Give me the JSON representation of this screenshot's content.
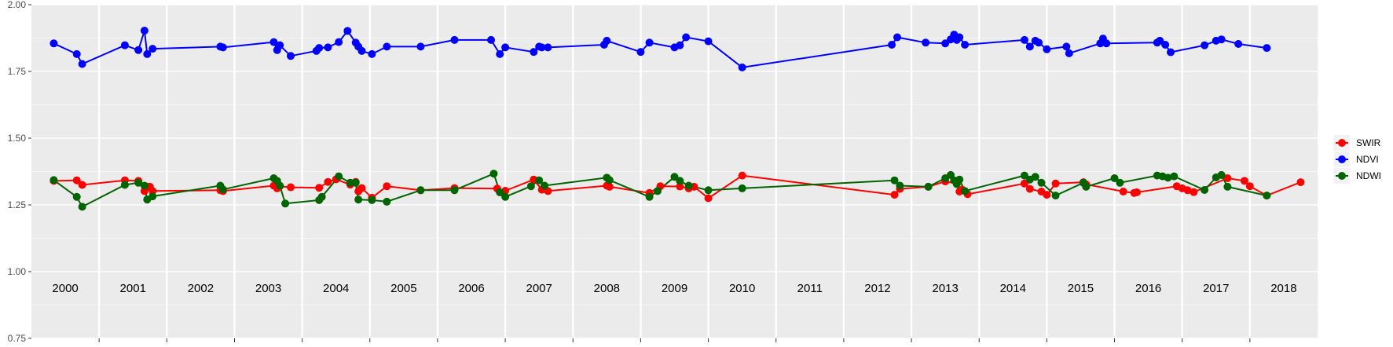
{
  "chart_data": {
    "type": "line",
    "title": "",
    "xlabel": "",
    "ylabel": "",
    "xlim": [
      2000.0,
      2019.0
    ],
    "ylim": [
      0.75,
      2.0
    ],
    "y_ticks": [
      "0.75",
      "1.00",
      "1.25",
      "1.50",
      "1.75",
      "2.00"
    ],
    "year_labels": [
      "2000",
      "2001",
      "2002",
      "2003",
      "2004",
      "2005",
      "2006",
      "2007",
      "2008",
      "2009",
      "2010",
      "2011",
      "2012",
      "2013",
      "2014",
      "2015",
      "2016",
      "2017",
      "2018"
    ],
    "grid": true,
    "legend_position": "right",
    "series": [
      {
        "name": "SWIR",
        "color": "#ff0000",
        "x": [
          2000.33,
          2000.67,
          2000.75,
          2001.38,
          2001.58,
          2001.67,
          2001.71,
          2001.75,
          2001.79,
          2002.79,
          2002.83,
          2003.58,
          2003.63,
          2003.67,
          2003.83,
          2004.25,
          2004.38,
          2004.5,
          2004.71,
          2004.79,
          2004.83,
          2004.88,
          2005.03,
          2005.25,
          2005.75,
          2006.25,
          2006.88,
          2007.0,
          2007.42,
          2007.54,
          2007.63,
          2008.5,
          2008.54,
          2009.13,
          2009.29,
          2009.58,
          2009.71,
          2009.79,
          2010.0,
          2010.5,
          2012.75,
          2012.83,
          2013.25,
          2013.5,
          2013.67,
          2013.71,
          2013.75,
          2013.83,
          2014.67,
          2014.75,
          2014.92,
          2015.0,
          2015.13,
          2015.54,
          2015.58,
          2016.13,
          2016.29,
          2016.33,
          2016.92,
          2017.0,
          2017.08,
          2017.17,
          2017.67,
          2017.92,
          2018.0,
          2018.25,
          2018.75
        ],
        "values": [
          1.34,
          1.342,
          1.325,
          1.342,
          1.34,
          1.302,
          1.318,
          1.318,
          1.302,
          1.305,
          1.302,
          1.322,
          1.312,
          1.32,
          1.316,
          1.314,
          1.336,
          1.346,
          1.326,
          1.336,
          1.301,
          1.313,
          1.277,
          1.32,
          1.305,
          1.313,
          1.311,
          1.303,
          1.345,
          1.307,
          1.302,
          1.322,
          1.318,
          1.295,
          1.32,
          1.319,
          1.312,
          1.318,
          1.275,
          1.36,
          1.288,
          1.31,
          1.318,
          1.338,
          1.33,
          1.3,
          1.307,
          1.29,
          1.33,
          1.31,
          1.3,
          1.288,
          1.33,
          1.335,
          1.327,
          1.3,
          1.295,
          1.297,
          1.32,
          1.312,
          1.305,
          1.298,
          1.35,
          1.34,
          1.32,
          1.285,
          1.335
        ]
      },
      {
        "name": "NDVI",
        "color": "#0000ff",
        "x": [
          2000.33,
          2000.67,
          2000.75,
          2001.38,
          2001.58,
          2001.67,
          2001.71,
          2001.79,
          2002.79,
          2002.83,
          2003.58,
          2003.63,
          2003.67,
          2003.83,
          2004.21,
          2004.25,
          2004.38,
          2004.54,
          2004.67,
          2004.79,
          2004.83,
          2004.88,
          2005.03,
          2005.25,
          2005.75,
          2006.25,
          2006.79,
          2006.92,
          2007.0,
          2007.42,
          2007.5,
          2007.54,
          2007.63,
          2008.46,
          2008.5,
          2009.0,
          2009.13,
          2009.5,
          2009.58,
          2009.67,
          2010.0,
          2010.5,
          2012.71,
          2012.79,
          2013.21,
          2013.5,
          2013.58,
          2013.63,
          2013.67,
          2013.71,
          2013.79,
          2014.67,
          2014.75,
          2014.83,
          2014.88,
          2015.0,
          2015.29,
          2015.33,
          2015.79,
          2015.83,
          2015.88,
          2016.63,
          2016.67,
          2016.75,
          2016.83,
          2017.33,
          2017.5,
          2017.58,
          2017.83,
          2018.25
        ],
        "values": [
          1.855,
          1.815,
          1.778,
          1.848,
          1.83,
          1.903,
          1.815,
          1.835,
          1.843,
          1.84,
          1.86,
          1.83,
          1.848,
          1.808,
          1.827,
          1.838,
          1.84,
          1.86,
          1.902,
          1.858,
          1.843,
          1.827,
          1.815,
          1.843,
          1.843,
          1.868,
          1.868,
          1.815,
          1.84,
          1.823,
          1.843,
          1.84,
          1.84,
          1.85,
          1.865,
          1.823,
          1.858,
          1.84,
          1.848,
          1.878,
          1.863,
          1.765,
          1.85,
          1.878,
          1.858,
          1.855,
          1.87,
          1.888,
          1.868,
          1.878,
          1.85,
          1.868,
          1.843,
          1.865,
          1.858,
          1.833,
          1.843,
          1.818,
          1.855,
          1.873,
          1.855,
          1.858,
          1.865,
          1.85,
          1.822,
          1.848,
          1.865,
          1.87,
          1.853,
          1.838
        ]
      },
      {
        "name": "NDWI",
        "color": "#006400",
        "x": [
          2000.33,
          2000.67,
          2000.75,
          2001.38,
          2001.58,
          2001.67,
          2001.71,
          2001.79,
          2002.79,
          2002.83,
          2003.58,
          2003.63,
          2003.67,
          2003.75,
          2004.25,
          2004.29,
          2004.54,
          2004.71,
          2004.79,
          2004.83,
          2005.03,
          2005.25,
          2005.75,
          2006.25,
          2006.83,
          2006.92,
          2007.0,
          2007.38,
          2007.5,
          2007.58,
          2008.5,
          2008.54,
          2009.13,
          2009.25,
          2009.5,
          2009.58,
          2009.71,
          2010.0,
          2010.5,
          2012.75,
          2012.83,
          2013.25,
          2013.5,
          2013.58,
          2013.63,
          2013.67,
          2013.71,
          2013.79,
          2014.67,
          2014.75,
          2014.83,
          2014.92,
          2015.13,
          2015.54,
          2015.58,
          2016.0,
          2016.08,
          2016.63,
          2016.71,
          2016.79,
          2016.88,
          2017.33,
          2017.5,
          2017.58,
          2017.67,
          2018.25
        ],
        "values": [
          1.343,
          1.28,
          1.243,
          1.325,
          1.333,
          1.322,
          1.27,
          1.282,
          1.322,
          1.308,
          1.35,
          1.34,
          1.322,
          1.255,
          1.268,
          1.28,
          1.357,
          1.333,
          1.333,
          1.27,
          1.268,
          1.262,
          1.305,
          1.305,
          1.367,
          1.297,
          1.28,
          1.32,
          1.342,
          1.322,
          1.352,
          1.343,
          1.28,
          1.302,
          1.355,
          1.34,
          1.322,
          1.305,
          1.312,
          1.342,
          1.322,
          1.318,
          1.35,
          1.362,
          1.342,
          1.328,
          1.345,
          1.302,
          1.36,
          1.345,
          1.355,
          1.333,
          1.285,
          1.333,
          1.318,
          1.35,
          1.333,
          1.36,
          1.357,
          1.352,
          1.357,
          1.306,
          1.353,
          1.362,
          1.318,
          1.285
        ]
      }
    ]
  }
}
